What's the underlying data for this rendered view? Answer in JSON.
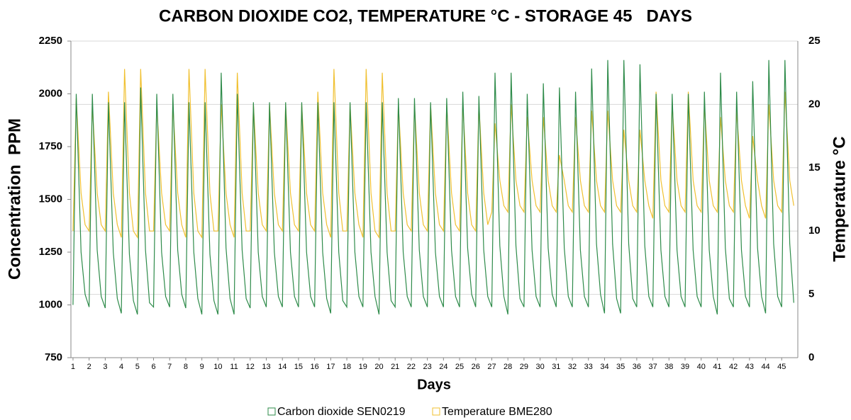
{
  "chart_data": {
    "type": "line",
    "title": "CARBON DIOXIDE CO2, TEMPERATURE °C - STORAGE 45   DAYS",
    "xlabel": "Days",
    "ylabel": "Concentration  PPM",
    "y2label": "Temperature °C",
    "xlim": [
      0.87,
      46
    ],
    "xticks": [
      1,
      2,
      3,
      4,
      5,
      6,
      7,
      8,
      9,
      10,
      11,
      12,
      13,
      14,
      15,
      16,
      17,
      18,
      19,
      20,
      21,
      22,
      23,
      24,
      25,
      26,
      27,
      28,
      29,
      30,
      31,
      32,
      33,
      34,
      35,
      36,
      37,
      38,
      39,
      40,
      41,
      42,
      43,
      44,
      45
    ],
    "ylim": [
      750,
      2250
    ],
    "yticks": [
      750,
      1000,
      1250,
      1500,
      1750,
      2000,
      2250
    ],
    "y2lim": [
      0,
      25
    ],
    "y2ticks": [
      0,
      5,
      10,
      15,
      20,
      25
    ],
    "grid": "y2",
    "legend": "bottom",
    "x": [
      1,
      1.2,
      1.5,
      1.75,
      2,
      2.2,
      2.5,
      2.75,
      3,
      3.2,
      3.5,
      3.75,
      4,
      4.2,
      4.5,
      4.75,
      5,
      5.2,
      5.5,
      5.75,
      6,
      6.2,
      6.5,
      6.75,
      7,
      7.2,
      7.5,
      7.75,
      8,
      8.2,
      8.5,
      8.75,
      9,
      9.2,
      9.5,
      9.75,
      10,
      10.2,
      10.5,
      10.75,
      11,
      11.2,
      11.5,
      11.75,
      12,
      12.2,
      12.5,
      12.75,
      13,
      13.2,
      13.5,
      13.75,
      14,
      14.2,
      14.5,
      14.75,
      15,
      15.2,
      15.5,
      15.75,
      16,
      16.2,
      16.5,
      16.75,
      17,
      17.2,
      17.5,
      17.75,
      18,
      18.2,
      18.5,
      18.75,
      19,
      19.2,
      19.5,
      19.75,
      20,
      20.2,
      20.5,
      20.75,
      21,
      21.2,
      21.5,
      21.75,
      22,
      22.2,
      22.5,
      22.75,
      23,
      23.2,
      23.5,
      23.75,
      24,
      24.2,
      24.5,
      24.75,
      25,
      25.2,
      25.5,
      25.75,
      26,
      26.2,
      26.5,
      26.75,
      27,
      27.2,
      27.5,
      27.75,
      28,
      28.2,
      28.5,
      28.75,
      29,
      29.2,
      29.5,
      29.75,
      30,
      30.2,
      30.5,
      30.75,
      31,
      31.2,
      31.5,
      31.75,
      32,
      32.2,
      32.5,
      32.75,
      33,
      33.2,
      33.5,
      33.75,
      34,
      34.2,
      34.5,
      34.75,
      35,
      35.2,
      35.5,
      35.75,
      36,
      36.2,
      36.5,
      36.75,
      37,
      37.2,
      37.5,
      37.75,
      38,
      38.2,
      38.5,
      38.75,
      39,
      39.2,
      39.5,
      39.75,
      40,
      40.2,
      40.5,
      40.75,
      41,
      41.2,
      41.5,
      41.75,
      42,
      42.2,
      42.5,
      42.75,
      43,
      43.2,
      43.5,
      43.75,
      44,
      44.2,
      44.5,
      44.75,
      45,
      45.2,
      45.5,
      45.75
    ],
    "series": [
      {
        "name": "Carbon dioxide SEN0219",
        "color": "#2e8b4a",
        "axis": "y",
        "values": [
          1000,
          2000,
          1250,
          1050,
          990,
          2000,
          1260,
          1040,
          985,
          1960,
          1250,
          1030,
          960,
          1960,
          1240,
          1020,
          955,
          2030,
          1260,
          1010,
          990,
          2000,
          1250,
          1040,
          990,
          2000,
          1260,
          1050,
          985,
          1960,
          1250,
          1030,
          955,
          1960,
          1240,
          1020,
          955,
          2100,
          1270,
          1030,
          955,
          2000,
          1260,
          1030,
          985,
          1960,
          1250,
          1040,
          990,
          1960,
          1250,
          1040,
          990,
          1960,
          1250,
          1040,
          990,
          1960,
          1250,
          1040,
          990,
          1960,
          1250,
          1030,
          960,
          1960,
          1250,
          1020,
          990,
          1960,
          1250,
          1040,
          990,
          1960,
          1250,
          1040,
          955,
          1960,
          1250,
          1020,
          990,
          1980,
          1250,
          1040,
          990,
          1980,
          1260,
          1040,
          990,
          1960,
          1250,
          1040,
          990,
          1980,
          1260,
          1040,
          990,
          2010,
          1270,
          1050,
          990,
          1990,
          1260,
          1040,
          990,
          2100,
          1280,
          1040,
          955,
          2100,
          1280,
          1030,
          990,
          2000,
          1260,
          1040,
          990,
          2050,
          1270,
          1050,
          990,
          2030,
          1270,
          1040,
          990,
          2010,
          1260,
          1040,
          990,
          2120,
          1290,
          1050,
          960,
          2160,
          1290,
          1030,
          960,
          2160,
          1290,
          1030,
          990,
          2140,
          1280,
          1040,
          990,
          2000,
          1260,
          1040,
          990,
          2000,
          1260,
          1040,
          990,
          2000,
          1260,
          1040,
          990,
          2010,
          1260,
          1040,
          955,
          2100,
          1270,
          1030,
          990,
          2010,
          1260,
          1040,
          990,
          2060,
          1270,
          1040,
          960,
          2160,
          1290,
          1040,
          990,
          2160,
          1290,
          1010
        ]
      },
      {
        "name": "Temperature BME280",
        "color": "#f0c030",
        "axis": "y2",
        "values": [
          10,
          20.5,
          13,
          10.5,
          10,
          20,
          13,
          10.5,
          10,
          21,
          13,
          10.5,
          9.5,
          22.8,
          13,
          10,
          9.5,
          22.8,
          13,
          10,
          10,
          20,
          13,
          10.5,
          10,
          20,
          13,
          10.5,
          9.5,
          22.8,
          13,
          10,
          9.5,
          22.8,
          13,
          10,
          10,
          20,
          13,
          10.5,
          9.5,
          22.5,
          13,
          10,
          10,
          20,
          13,
          10.5,
          10,
          20,
          13,
          10.5,
          10,
          20,
          13,
          10.5,
          10,
          20,
          13,
          10.5,
          10,
          21,
          13,
          10.5,
          9.5,
          22.8,
          13,
          10,
          10,
          20,
          13,
          10.5,
          9.5,
          22.8,
          13,
          10,
          9.5,
          22.5,
          13,
          10,
          10,
          20,
          13,
          10.5,
          10,
          20,
          13,
          10.5,
          10,
          20,
          13,
          10.5,
          10,
          20,
          13,
          10.5,
          10,
          20,
          13,
          10.5,
          10,
          20,
          13,
          10.5,
          11.5,
          18.5,
          14,
          12,
          11.5,
          20,
          14,
          12,
          11.5,
          19,
          14,
          12,
          11.5,
          19,
          14,
          12,
          11.5,
          16,
          14,
          12,
          11.5,
          19,
          14,
          12,
          11.5,
          19.5,
          14,
          12,
          11.5,
          19.5,
          14,
          12,
          11.5,
          18,
          14,
          12,
          11.5,
          18,
          14,
          12,
          11,
          21,
          14,
          12,
          11.5,
          20,
          14,
          12,
          11.5,
          21,
          14,
          12,
          11.5,
          20,
          14,
          12,
          11.5,
          19,
          14,
          12,
          11.5,
          19.5,
          14,
          12,
          11,
          17.5,
          14,
          12,
          11,
          20,
          14,
          12,
          11.5,
          21,
          14,
          12
        ]
      }
    ]
  }
}
